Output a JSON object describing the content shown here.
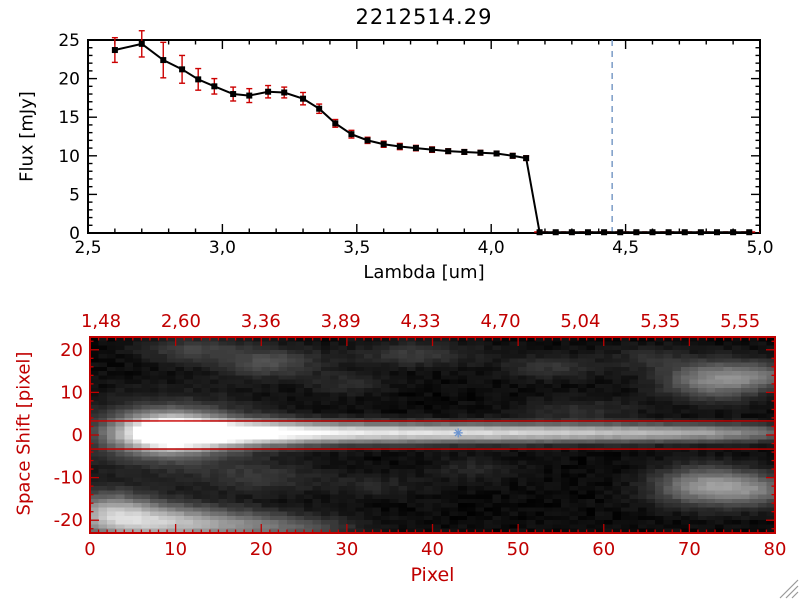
{
  "window": {
    "background": "#ffffff"
  },
  "title": "2212514.29",
  "top_plot": {
    "xlabel": "Lambda [um]",
    "ylabel": "Flux [mJy]",
    "x_tick_values": [
      2.5,
      3.0,
      3.5,
      4.0,
      4.5,
      5.0
    ],
    "x_tick_labels": [
      "2,5",
      "3,0",
      "3,5",
      "4,0",
      "4,5",
      "5,0"
    ],
    "y_tick_values": [
      0,
      5,
      10,
      15,
      20,
      25
    ],
    "y_tick_labels": [
      "0",
      "5",
      "10",
      "15",
      "20",
      "25"
    ],
    "axis_color": "#000000"
  },
  "bottom_plot": {
    "xlabel": "Pixel",
    "ylabel": "Space Shift [pixel]",
    "x_tick_values": [
      0,
      10,
      20,
      30,
      40,
      50,
      60,
      70,
      80
    ],
    "x_tick_labels": [
      "0",
      "10",
      "20",
      "30",
      "40",
      "50",
      "60",
      "70",
      "80"
    ],
    "y_tick_values": [
      -20,
      -10,
      0,
      10,
      20
    ],
    "y_tick_labels": [
      "-20",
      "-10",
      "0",
      "10",
      "20"
    ],
    "top_axis_labels": [
      "1,48",
      "2,60",
      "3,36",
      "3,89",
      "4,33",
      "4,70",
      "5,04",
      "5,35",
      "5,55"
    ],
    "axis_color": "#c00000"
  },
  "chart_data": [
    {
      "type": "line",
      "title": "2212514.29",
      "xlabel": "Lambda [um]",
      "ylabel": "Flux [mJy]",
      "xlim": [
        2.5,
        5.0
      ],
      "ylim": [
        0,
        25
      ],
      "marker": "filled-square",
      "line_color": "#000000",
      "errorbar_color": "#cc0000",
      "x": [
        2.6,
        2.7,
        2.78,
        2.85,
        2.91,
        2.97,
        3.04,
        3.1,
        3.17,
        3.23,
        3.3,
        3.36,
        3.42,
        3.48,
        3.54,
        3.6,
        3.66,
        3.72,
        3.78,
        3.84,
        3.9,
        3.96,
        4.02,
        4.08,
        4.13,
        4.18,
        4.24,
        4.3,
        4.36,
        4.42,
        4.48,
        4.54,
        4.6,
        4.66,
        4.72,
        4.78,
        4.84,
        4.9,
        4.96
      ],
      "y": [
        23.7,
        24.5,
        22.4,
        21.2,
        19.9,
        19.0,
        18.0,
        17.8,
        18.3,
        18.2,
        17.4,
        16.1,
        14.2,
        12.8,
        12.0,
        11.5,
        11.2,
        11.0,
        10.8,
        10.6,
        10.5,
        10.4,
        10.3,
        10.0,
        9.7,
        0.1,
        0.1,
        0.1,
        0.1,
        0.1,
        0.1,
        0.1,
        0.1,
        0.1,
        0.1,
        0.1,
        0.1,
        0.1,
        0.1
      ],
      "yerr": [
        1.6,
        1.7,
        2.3,
        1.8,
        1.4,
        1.0,
        0.9,
        0.9,
        0.8,
        0.7,
        0.8,
        0.6,
        0.5,
        0.5,
        0.4,
        0.4,
        0.4,
        0.35,
        0.35,
        0.3,
        0.3,
        0.3,
        0.3,
        0.3,
        0.3,
        0.2,
        0.15,
        0.15,
        0.15,
        0.15,
        0.15,
        0.15,
        0.15,
        0.15,
        0.15,
        0.15,
        0.15,
        0.15,
        0.15
      ],
      "vline": {
        "x": 4.45,
        "style": "dashed",
        "color": "#7a9cc6"
      },
      "hline": {
        "y": 0,
        "x_from": 4.16,
        "x_to": 5.0,
        "style": "dashed",
        "color": "#cc0000"
      }
    },
    {
      "type": "heatmap",
      "xlabel": "Pixel",
      "ylabel": "Space Shift [pixel]",
      "xlim": [
        0,
        80
      ],
      "ylim": [
        -23,
        23
      ],
      "colormap": "grayscale",
      "top_axis_wavelengths": [
        "1,48",
        "2,60",
        "3,36",
        "3,89",
        "4,33",
        "4,70",
        "5,04",
        "5,35",
        "5,55"
      ],
      "aperture_lines_y": [
        3.3,
        -3.3
      ],
      "aperture_line_color": "#cc0000",
      "marker": {
        "x": 43,
        "y": 0.5,
        "color": "#6a93cf",
        "symbol": "asterisk"
      },
      "features_comment": "elliptical gaussians: [center_x_pixel, center_y_shift, sigma_x, sigma_y, amplitude]",
      "features": [
        [
          9,
          0.5,
          4,
          3,
          1.0
        ],
        [
          16,
          0.5,
          6,
          2,
          0.8
        ],
        [
          26,
          0.5,
          8,
          1.7,
          0.55
        ],
        [
          38,
          0.5,
          9,
          1.5,
          0.48
        ],
        [
          50,
          0.5,
          9,
          1.5,
          0.42
        ],
        [
          62,
          0.5,
          9,
          1.4,
          0.38
        ],
        [
          74,
          0.5,
          8,
          1.4,
          0.34
        ],
        [
          10,
          0,
          7,
          6,
          0.22
        ],
        [
          5,
          -20,
          5,
          3,
          0.6
        ],
        [
          14,
          -21,
          6,
          2.5,
          0.45
        ],
        [
          24,
          -22,
          5,
          2,
          0.2
        ],
        [
          2,
          -17,
          3,
          3,
          0.3
        ],
        [
          72,
          -12,
          4,
          3,
          0.5
        ],
        [
          78,
          -13,
          3,
          2.5,
          0.3
        ],
        [
          73,
          13,
          4,
          3,
          0.45
        ],
        [
          79,
          14,
          3,
          2,
          0.25
        ],
        [
          21,
          17,
          4,
          2.5,
          0.22
        ],
        [
          12,
          20,
          4,
          2,
          0.18
        ],
        [
          38,
          19,
          5,
          2,
          0.15
        ],
        [
          54,
          16,
          4,
          2,
          0.13
        ],
        [
          30,
          12,
          3,
          2,
          0.1
        ],
        [
          65,
          18,
          3,
          2,
          0.1
        ],
        [
          57,
          6,
          5,
          2,
          0.1
        ],
        [
          20,
          -10,
          5,
          2.5,
          0.12
        ],
        [
          33,
          -12,
          4,
          2,
          0.08
        ],
        [
          45,
          -8,
          4,
          2,
          0.08
        ]
      ]
    }
  ]
}
